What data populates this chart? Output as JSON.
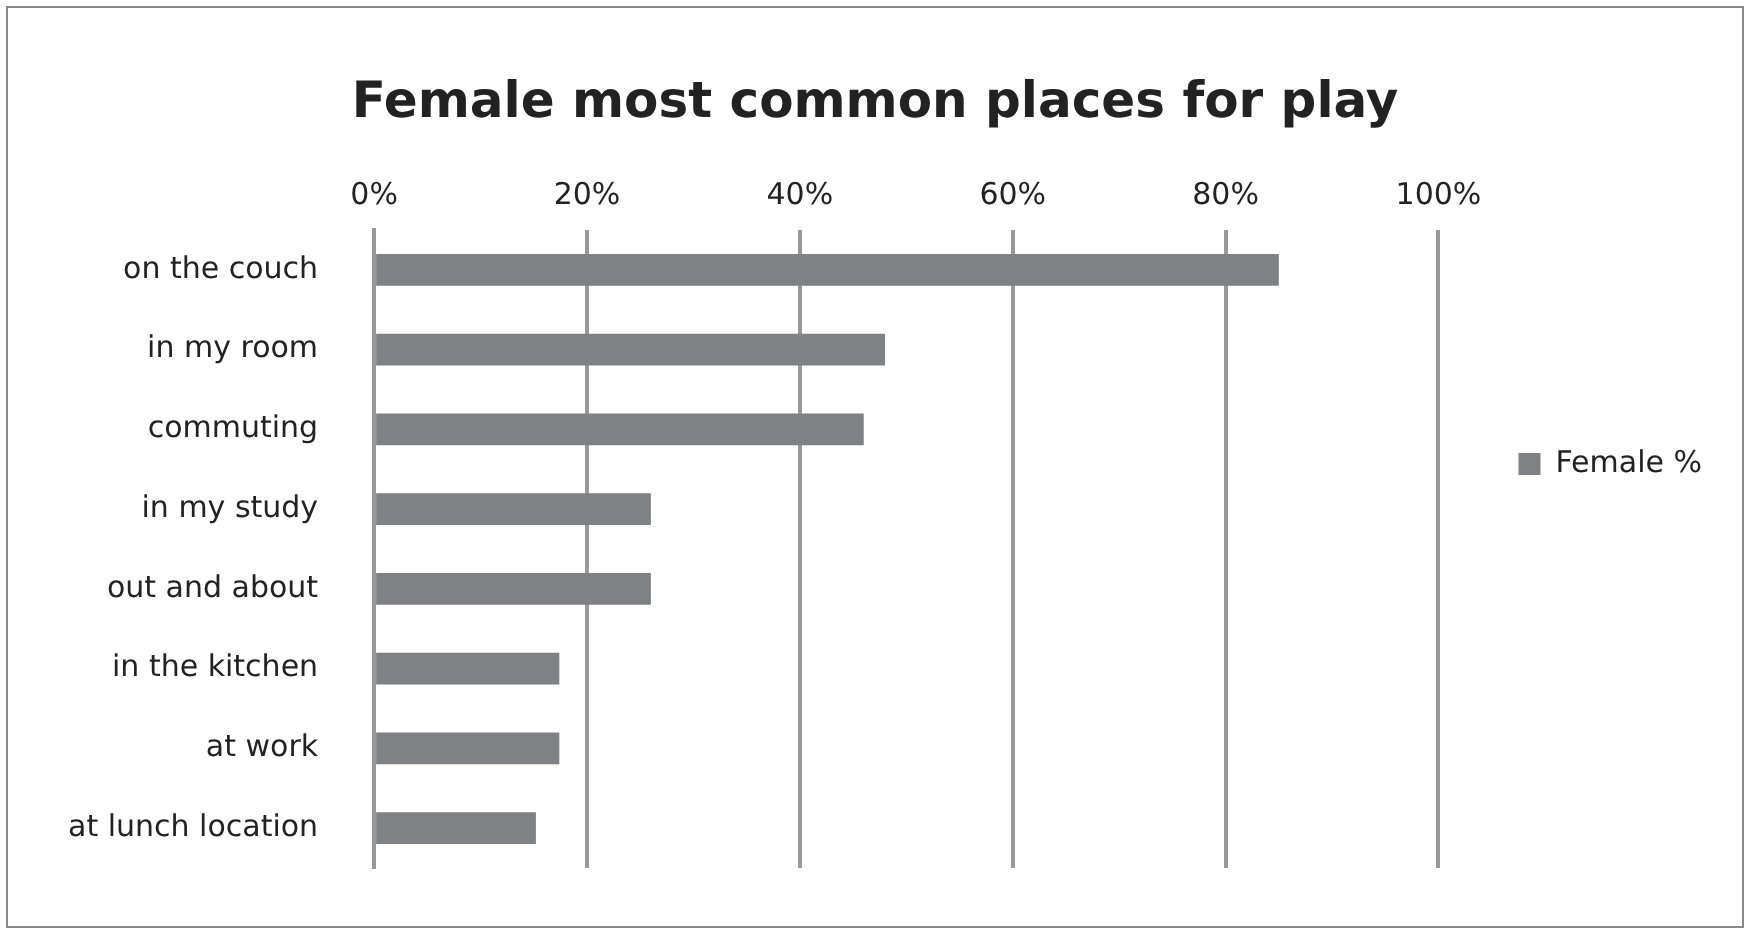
{
  "chart_data": {
    "type": "bar",
    "orientation": "horizontal",
    "title": "Female most common places for play",
    "categories": [
      "on the couch",
      "in my room",
      "commuting",
      "in my study",
      "out and about",
      "in the kitchen",
      "at work",
      "at lunch location"
    ],
    "series": [
      {
        "name": "Female %",
        "color": "#808184",
        "values": [
          85,
          48,
          46,
          26,
          26,
          17.4,
          17.4,
          15.2
        ]
      }
    ],
    "xlim": [
      0,
      100
    ],
    "xticks": [
      {
        "value": 0,
        "label": "0%"
      },
      {
        "value": 20,
        "label": "20%"
      },
      {
        "value": 40,
        "label": "40%"
      },
      {
        "value": 60,
        "label": "60%"
      },
      {
        "value": 80,
        "label": "80%"
      },
      {
        "value": 100,
        "label": "100%"
      }
    ],
    "grid": "x",
    "legend": "right"
  }
}
